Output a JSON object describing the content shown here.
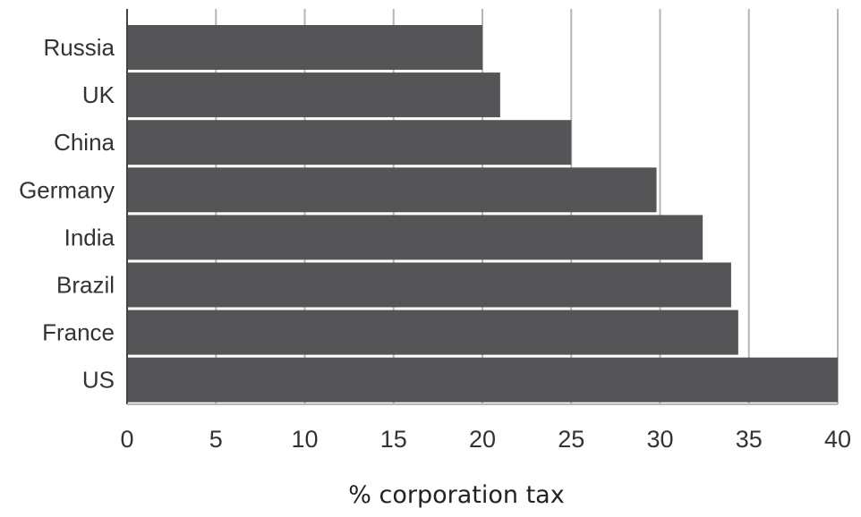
{
  "chart_data": {
    "type": "bar",
    "orientation": "horizontal",
    "title": "",
    "xlabel": "% corporation tax",
    "ylabel": "",
    "categories": [
      "Russia",
      "UK",
      "China",
      "Germany",
      "India",
      "Brazil",
      "France",
      "US"
    ],
    "values": [
      20,
      21,
      25,
      29.8,
      32.4,
      34,
      34.4,
      40
    ],
    "xlim": [
      0,
      40
    ],
    "xticks": [
      0,
      5,
      10,
      15,
      20,
      25,
      30,
      35,
      40
    ],
    "grid": true,
    "legend": "none",
    "colors": {
      "bar": "#555558",
      "grid": "#b5b5b5",
      "axis": "#444444"
    }
  }
}
